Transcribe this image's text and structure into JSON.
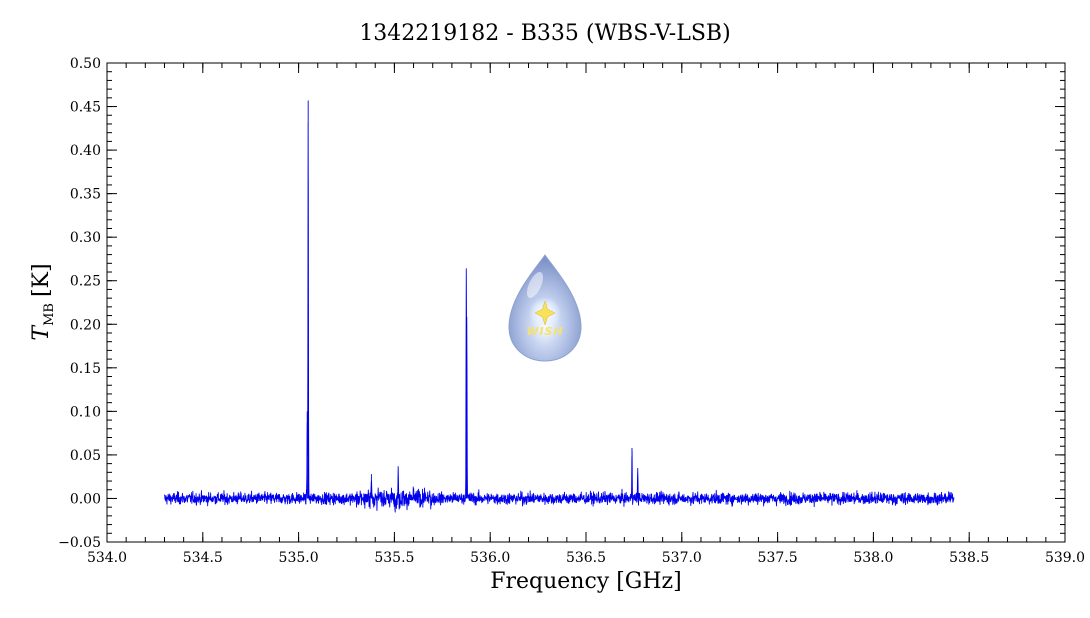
{
  "chart_data": {
    "type": "line",
    "title": "1342219182 - B335 (WBS-V-LSB)",
    "xlabel": "Frequency [GHz]",
    "ylabel_main": "T",
    "ylabel_sub": "MB",
    "ylabel_unit": "[K]",
    "xlim": [
      534.0,
      539.0
    ],
    "ylim": [
      -0.05,
      0.5
    ],
    "x_ticks": [
      "534.0",
      "534.5",
      "535.0",
      "535.5",
      "536.0",
      "536.5",
      "537.0",
      "537.5",
      "538.0",
      "538.5",
      "539.0"
    ],
    "y_ticks": [
      "−0.05",
      "0.00",
      "0.05",
      "0.10",
      "0.15",
      "0.20",
      "0.25",
      "0.30",
      "0.35",
      "0.40",
      "0.45",
      "0.50"
    ],
    "series": [
      {
        "color": "#0000ee",
        "x_range": [
          534.3,
          538.42
        ],
        "noise_rms": 0.006,
        "peaks": [
          {
            "x": 535.05,
            "y": 0.457
          },
          {
            "x": 535.045,
            "y": 0.1
          },
          {
            "x": 535.875,
            "y": 0.255
          },
          {
            "x": 535.878,
            "y": 0.2
          },
          {
            "x": 536.74,
            "y": 0.058
          },
          {
            "x": 536.77,
            "y": 0.035
          },
          {
            "x": 535.52,
            "y": 0.033
          },
          {
            "x": 535.38,
            "y": 0.028
          }
        ]
      }
    ],
    "grid": false,
    "legend": "none"
  },
  "logo": {
    "text": "WISH",
    "icon": "water-drop-star-icon"
  }
}
